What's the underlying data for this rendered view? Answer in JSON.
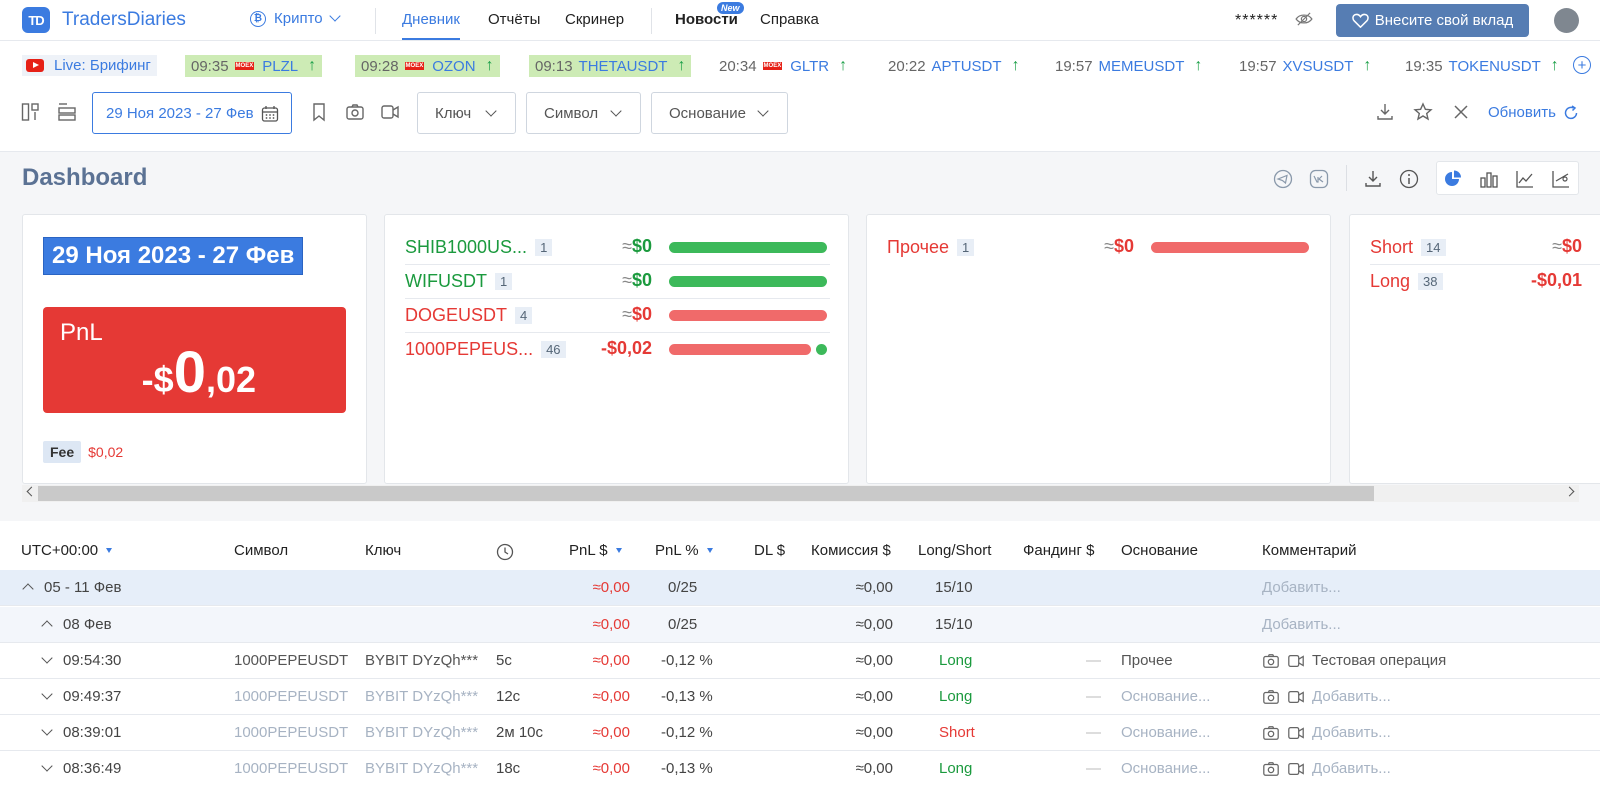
{
  "header": {
    "logo_mark": "TD",
    "logo_text": "TradersDiaries",
    "market": "Крипто",
    "nav": [
      {
        "label": "Дневник"
      },
      {
        "label": "Отчёты"
      },
      {
        "label": "Скринер"
      },
      {
        "label": "Новости"
      },
      {
        "label": "Справка"
      }
    ],
    "news_badge": "New",
    "balance_mask": "******",
    "donate_label": "Внесите свой вклад"
  },
  "ticker": {
    "live_label": "Live: Брифинг",
    "moex_label": "MOEX",
    "items": [
      {
        "time": "09:35",
        "symbol": "PLZL",
        "arrow": "↑",
        "moex": true,
        "highlight": true
      },
      {
        "time": "09:28",
        "symbol": "OZON",
        "arrow": "↑",
        "moex": true,
        "highlight": true
      },
      {
        "time": "09:13",
        "symbol": "THETAUSDT",
        "arrow": "↑",
        "moex": false,
        "highlight": true
      },
      {
        "time": "20:34",
        "symbol": "GLTR",
        "arrow": "↑",
        "moex": true,
        "highlight": false
      },
      {
        "time": "20:22",
        "symbol": "APTUSDT",
        "arrow": "↑",
        "moex": false,
        "highlight": false
      },
      {
        "time": "19:57",
        "symbol": "MEMEUSDT",
        "arrow": "↑",
        "moex": false,
        "highlight": false
      },
      {
        "time": "19:57",
        "symbol": "XVSUSDT",
        "arrow": "↑",
        "moex": false,
        "highlight": false
      },
      {
        "time": "19:35",
        "symbol": "TOKENUSDT",
        "arrow": "↑",
        "moex": false,
        "highlight": false
      }
    ]
  },
  "filters": {
    "date_range": "29 Ноя 2023 - 27 Фев",
    "key": "Ключ",
    "symbol": "Символ",
    "basis": "Основание",
    "refresh": "Обновить"
  },
  "dashboard": {
    "title": "Dashboard",
    "period": "29 Ноя 2023 - 27 Фев",
    "pnl_label": "PnL",
    "pnl_sign": "-$",
    "pnl_int": "0",
    "pnl_frac": ",02",
    "fee_label": "Fee",
    "fee_value": "$0,02",
    "symbols": [
      {
        "name": "SHIB1000US...",
        "count": "1",
        "approx": "≈",
        "value": "$0",
        "color": "green",
        "fill": 1.0
      },
      {
        "name": "WIFUSDT",
        "count": "1",
        "approx": "≈",
        "value": "$0",
        "color": "green",
        "fill": 1.0
      },
      {
        "name": "DOGEUSDT",
        "count": "4",
        "approx": "≈",
        "value": "$0",
        "color": "red",
        "fill": 1.0
      },
      {
        "name": "1000PEPEUS...",
        "count": "46",
        "approx": "",
        "value": "-$0,02",
        "color": "red",
        "fill": 0.9
      }
    ],
    "bases": [
      {
        "name": "Прочее",
        "count": "1",
        "approx": "≈",
        "value": "$0",
        "color": "red"
      }
    ],
    "sides": [
      {
        "name": "Short",
        "count": "14",
        "approx": "≈",
        "value": "$0",
        "color": "red"
      },
      {
        "name": "Long",
        "count": "38",
        "approx": "",
        "value": "-$0,01",
        "color": "red"
      }
    ]
  },
  "table": {
    "headers": {
      "tz": "UTC+00:00",
      "symbol": "Символ",
      "key": "Ключ",
      "pnl_usd": "PnL $",
      "pnl_pct": "PnL %",
      "dl": "DL $",
      "commission": "Комиссия $",
      "side": "Long/Short",
      "funding": "Фандинг $",
      "basis": "Основание",
      "comment": "Комментарий"
    },
    "groups": [
      {
        "label": "05 - 11 Фев",
        "pnl": "≈0,00",
        "ratio": "0/25",
        "commission": "≈0,00",
        "side": "15/10",
        "comment": "Добавить..."
      },
      {
        "label": "08 Фев",
        "pnl": "≈0,00",
        "ratio": "0/25",
        "commission": "≈0,00",
        "side": "15/10",
        "comment": "Добавить..."
      }
    ],
    "rows": [
      {
        "time": "09:54:30",
        "symbol": "1000PEPEUSDT",
        "key": "BYBIT DYzQh***",
        "duration": "5с",
        "pnl": "≈0,00",
        "pct": "-0,12 %",
        "commission": "≈0,00",
        "side": "Long",
        "funding": "—",
        "basis": "Прочее",
        "comment": "Тестовая операция"
      },
      {
        "time": "09:49:37",
        "symbol": "1000PEPEUSDT",
        "key": "BYBIT DYzQh***",
        "duration": "12с",
        "pnl": "≈0,00",
        "pct": "-0,13 %",
        "commission": "≈0,00",
        "side": "Long",
        "funding": "—",
        "basis": "Основание...",
        "comment": "Добавить..."
      },
      {
        "time": "08:39:01",
        "symbol": "1000PEPEUSDT",
        "key": "BYBIT DYzQh***",
        "duration": "2м 10с",
        "pnl": "≈0,00",
        "pct": "-0,12 %",
        "commission": "≈0,00",
        "side": "Short",
        "funding": "—",
        "basis": "Основание...",
        "comment": "Добавить..."
      },
      {
        "time": "08:36:49",
        "symbol": "1000PEPEUSDT",
        "key": "BYBIT DYzQh***",
        "duration": "18с",
        "pnl": "≈0,00",
        "pct": "-0,13 %",
        "commission": "≈0,00",
        "side": "Long",
        "funding": "—",
        "basis": "Основание...",
        "comment": "Добавить..."
      }
    ]
  }
}
